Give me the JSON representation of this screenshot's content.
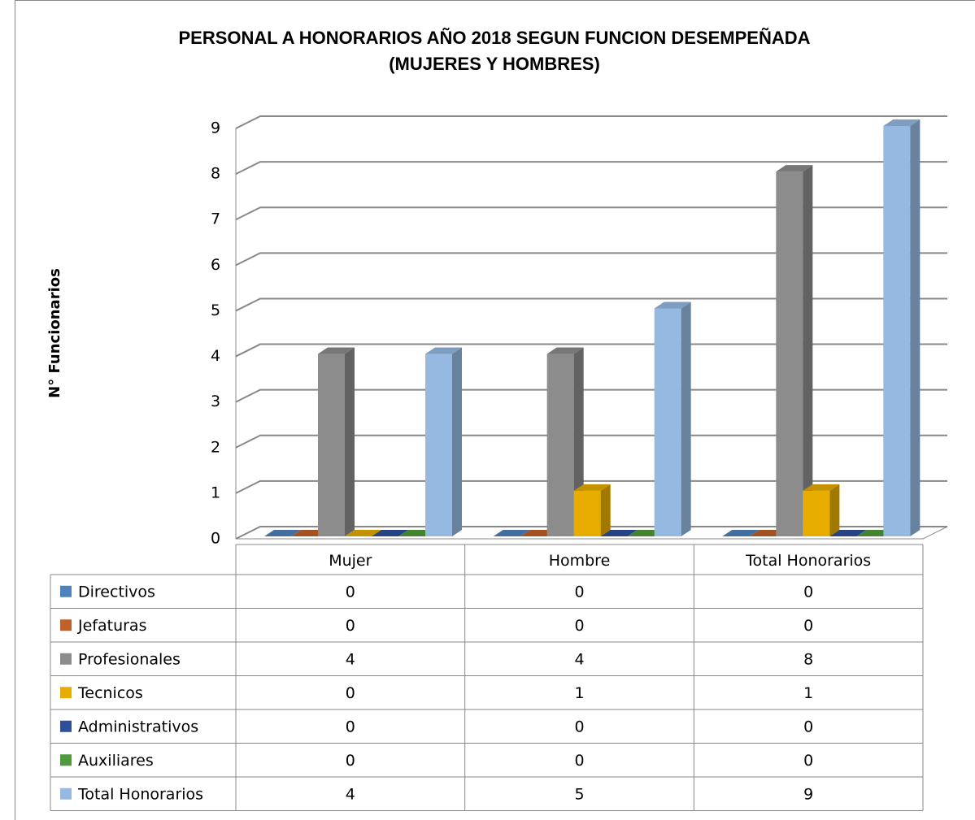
{
  "chart_data": {
    "type": "bar3d",
    "title": "PERSONAL A HONORARIOS  AÑO 2018  SEGUN FUNCION DESEMPEÑADA",
    "subtitle": "(MUJERES Y HOMBRES)",
    "y_label": "N° Funcionarios",
    "categories": [
      "Mujer",
      "Hombre",
      "Total Honorarios"
    ],
    "series": [
      {
        "name": "Directivos",
        "color": "#4f81bd",
        "values": [
          0,
          0,
          0
        ]
      },
      {
        "name": "Jefaturas",
        "color": "#c0602a",
        "values": [
          0,
          0,
          0
        ]
      },
      {
        "name": "Profesionales",
        "color": "#8c8c8c",
        "values": [
          4,
          4,
          8
        ]
      },
      {
        "name": "Tecnicos",
        "color": "#e6ac00",
        "values": [
          0,
          1,
          1
        ]
      },
      {
        "name": "Administrativos",
        "color": "#2f4f9a",
        "values": [
          0,
          0,
          0
        ]
      },
      {
        "name": "Auxiliares",
        "color": "#4f9a3a",
        "values": [
          0,
          0,
          0
        ]
      },
      {
        "name": "Total Honorarios",
        "color": "#95b9e1",
        "values": [
          4,
          5,
          9
        ]
      }
    ],
    "ylim": [
      0,
      9
    ],
    "yticks": [
      0,
      1,
      2,
      3,
      4,
      5,
      6,
      7,
      8,
      9
    ],
    "grid": true,
    "data_table": true
  }
}
